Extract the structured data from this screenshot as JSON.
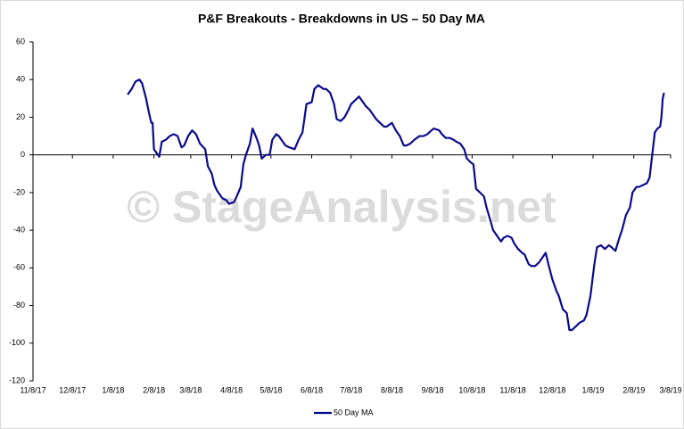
{
  "chart_data": {
    "type": "line",
    "title": "P&F Breakouts - Breakdowns in US – 50 Day MA",
    "watermark": "© StageAnalysis.net",
    "xlim": [
      "11/8/17",
      "3/8/19"
    ],
    "xticks": [
      "11/8/17",
      "12/8/17",
      "1/8/18",
      "2/8/18",
      "3/8/18",
      "4/8/18",
      "5/8/18",
      "6/8/18",
      "7/8/18",
      "8/8/18",
      "9/8/18",
      "10/8/18",
      "11/8/18",
      "12/8/18",
      "1/8/19",
      "2/8/19",
      "3/8/19"
    ],
    "ylim": [
      -120,
      60
    ],
    "yticks": [
      -120,
      -100,
      -80,
      -60,
      -40,
      -20,
      0,
      20,
      40,
      60
    ],
    "legend": "bottom",
    "x": [
      "1/19/18",
      "1/22/18",
      "1/25/18",
      "1/28/18",
      "1/30/18",
      "2/2/18",
      "2/4/18",
      "2/6/18",
      "2/7/18",
      "2/8/18",
      "2/10/18",
      "2/12/18",
      "2/14/18",
      "2/17/18",
      "2/20/18",
      "2/23/18",
      "2/26/18",
      "3/1/18",
      "3/3/18",
      "3/6/18",
      "3/9/18",
      "3/12/18",
      "3/15/18",
      "3/19/18",
      "3/21/18",
      "3/24/18",
      "3/26/18",
      "3/28/18",
      "4/1/18",
      "4/4/18",
      "4/6/18",
      "4/10/18",
      "4/12/18",
      "4/15/18",
      "4/17/18",
      "4/19/18",
      "4/22/18",
      "4/24/18",
      "4/27/18",
      "4/29/18",
      "5/1/18",
      "5/4/18",
      "5/7/18",
      "5/9/18",
      "5/12/18",
      "5/14/18",
      "5/17/18",
      "5/19/18",
      "5/22/18",
      "5/26/18",
      "5/29/18",
      "6/1/18",
      "6/4/18",
      "6/8/18",
      "6/10/18",
      "6/13/18",
      "6/17/18",
      "6/19/18",
      "6/22/18",
      "6/25/18",
      "6/27/18",
      "6/30/18",
      "7/3/18",
      "7/6/18",
      "7/8/18",
      "7/11/18",
      "7/14/18",
      "7/16/18",
      "7/19/18",
      "7/22/18",
      "7/25/18",
      "7/27/18",
      "7/30/18",
      "8/2/18",
      "8/4/18",
      "8/8/18",
      "8/11/18",
      "8/14/18",
      "8/17/18",
      "8/19/18",
      "8/22/18",
      "8/25/18",
      "8/29/18",
      "9/1/18",
      "9/4/18",
      "9/7/18",
      "9/9/18",
      "9/13/18",
      "9/15/18",
      "9/18/18",
      "9/21/18",
      "9/24/18",
      "9/26/18",
      "9/29/18",
      "10/2/18",
      "10/4/18",
      "10/7/18",
      "10/9/18",
      "10/11/18",
      "10/14/18",
      "10/17/18",
      "10/19/18",
      "10/22/18",
      "10/24/18",
      "10/27/18",
      "10/30/18",
      "11/1/18",
      "11/4/18",
      "11/7/18",
      "11/9/18",
      "11/12/18",
      "11/15/18",
      "11/17/18",
      "11/20/18",
      "11/22/18",
      "11/25/18",
      "11/28/18",
      "11/30/18",
      "12/3/18",
      "12/5/18",
      "12/8/18",
      "12/11/18",
      "12/13/18",
      "12/16/18",
      "12/19/18",
      "12/21/18",
      "12/23/18",
      "12/26/18",
      "12/29/18",
      "1/1/19",
      "1/3/19",
      "1/6/19",
      "1/9/19",
      "1/11/19",
      "1/14/19",
      "1/17/19",
      "1/20/19",
      "1/22/19",
      "1/25/19",
      "1/28/19",
      "1/30/19",
      "2/2/19",
      "2/5/19",
      "2/7/19",
      "2/10/19",
      "2/12/19",
      "2/15/19",
      "2/18/19",
      "2/20/19",
      "2/22/19",
      "2/24/19",
      "2/26/19",
      "2/28/19",
      "3/1/19",
      "3/2/19",
      "3/3/19"
    ],
    "series": [
      {
        "name": "50 Day MA",
        "color": "#0a0a8f",
        "values": [
          32,
          35,
          39,
          40,
          38,
          30,
          23,
          17,
          17,
          3,
          1,
          -1,
          7,
          8,
          10,
          11,
          10,
          4,
          5,
          10,
          13,
          11,
          6,
          3,
          -6,
          -10,
          -16,
          -19,
          -23,
          -24,
          -26,
          -25,
          -22,
          -17,
          -5,
          0,
          6,
          14,
          9,
          5,
          -2,
          0,
          0,
          8,
          11,
          10,
          7,
          5,
          4,
          3,
          8,
          12,
          27,
          28,
          35,
          37,
          35,
          35,
          33,
          27,
          19,
          18,
          20,
          24,
          27,
          29,
          31,
          29,
          26,
          24,
          21,
          19,
          17,
          15,
          15,
          17,
          13,
          10,
          5,
          5,
          6,
          8,
          10,
          10,
          11,
          13,
          14,
          13,
          11,
          9,
          9,
          8,
          7,
          6,
          3,
          -2,
          -4,
          -5,
          -18,
          -20,
          -22,
          -28,
          -35,
          -40,
          -43,
          -46,
          -44,
          -43,
          -44,
          -47,
          -50,
          -52,
          -53,
          -58,
          -59,
          -59,
          -57,
          -55,
          -52,
          -58,
          -66,
          -72,
          -75,
          -82,
          -84,
          -93,
          -93,
          -91,
          -89,
          -88,
          -85,
          -75,
          -58,
          -49,
          -48,
          -50,
          -48,
          -49,
          -51,
          -44,
          -40,
          -32,
          -28,
          -20,
          -17,
          -17,
          -16,
          -15,
          -12,
          0,
          12,
          14,
          15,
          20,
          30,
          33
        ]
      }
    ]
  }
}
